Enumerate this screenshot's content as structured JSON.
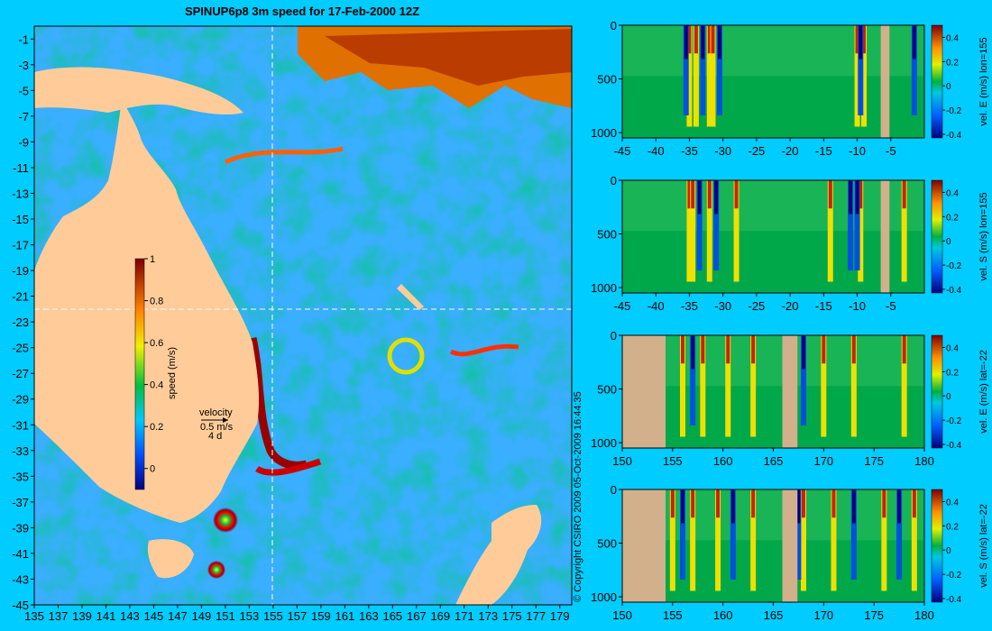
{
  "map": {
    "title": "SPINUP6p8 3m speed for 17-Feb-2000 12Z",
    "copyright": "© Copyright CSIRO 2009  05-Oct-2009 16:44:35",
    "velocity_legend": {
      "label": "velocity",
      "speed": "0.5 m/s",
      "duration": "4 d"
    },
    "crosshair": {
      "lon": 155,
      "lat": -22
    },
    "colorbar": {
      "label": "speed (m/s)",
      "ticks": [
        "1",
        "0.8",
        "0.6",
        "0.4",
        "0.2",
        "0"
      ],
      "range": [
        -0.1,
        1.0
      ]
    }
  },
  "chart_data": [
    {
      "type": "heatmap",
      "name": "map-speed",
      "xlim": [
        135,
        180
      ],
      "ylim": [
        -45,
        0
      ],
      "xticks": [
        "135",
        "137",
        "139",
        "141",
        "143",
        "145",
        "147",
        "149",
        "151",
        "153",
        "155",
        "157",
        "159",
        "161",
        "163",
        "165",
        "167",
        "169",
        "171",
        "173",
        "175",
        "177",
        "179"
      ],
      "yticks": [
        "-1",
        "-3",
        "-5",
        "-7",
        "-9",
        "-11",
        "-13",
        "-15",
        "-17",
        "-19",
        "-21",
        "-23",
        "-25",
        "-27",
        "-29",
        "-31",
        "-33",
        "-35",
        "-37",
        "-39",
        "-41",
        "-43",
        "-45"
      ]
    },
    {
      "type": "heatmap",
      "name": "section-1",
      "xlim": [
        -45,
        0
      ],
      "ylim": [
        1050,
        0
      ],
      "xticks": [
        "-45",
        "-40",
        "-35",
        "-30",
        "-25",
        "-20",
        "-15",
        "-10",
        "-5"
      ],
      "yticks": [
        "0",
        "500",
        "1000"
      ],
      "colorbar": {
        "label": "vel. E (m/s) lon=155",
        "ticks": [
          "0.4",
          "0.2",
          "0",
          "-0.2",
          "-0.4"
        ]
      },
      "high": [
        -35,
        -34,
        -32,
        -31.5,
        -10,
        -9
      ],
      "low": [
        -35.5,
        -33,
        -30.5,
        -9.5,
        -1.5
      ],
      "land": [
        [
          -6.5,
          -5.2
        ]
      ]
    },
    {
      "type": "heatmap",
      "name": "section-2",
      "xlim": [
        -45,
        0
      ],
      "ylim": [
        1050,
        0
      ],
      "xticks": [
        "-45",
        "-40",
        "-35",
        "-30",
        "-25",
        "-20",
        "-15",
        "-10",
        "-5"
      ],
      "yticks": [
        "0",
        "500",
        "1000"
      ],
      "colorbar": {
        "label": "vel. S (m/s) lon=155",
        "ticks": [
          "0.4",
          "0.2",
          "0",
          "-0.2",
          "-0.4"
        ]
      },
      "high": [
        -35,
        -34.5,
        -32,
        -28,
        -14,
        -9.5,
        -3
      ],
      "low": [
        -33.5,
        -31,
        -11,
        -10
      ],
      "land": [
        [
          -6.5,
          -5.2
        ]
      ]
    },
    {
      "type": "heatmap",
      "name": "section-3",
      "xlim": [
        150,
        180
      ],
      "ylim": [
        1050,
        0
      ],
      "xticks": [
        "150",
        "155",
        "160",
        "165",
        "170",
        "175",
        "180"
      ],
      "yticks": [
        "0",
        "500",
        "1000"
      ],
      "colorbar": {
        "label": "vel. E (m/s) lat=-22",
        "ticks": [
          "0.4",
          "0.2",
          "0",
          "-0.2",
          "-0.4"
        ]
      },
      "high": [
        156,
        158,
        160.5,
        163,
        170,
        173,
        178
      ],
      "low": [
        157,
        166.5,
        168
      ],
      "land": [
        [
          150,
          154.3
        ],
        [
          165.9,
          167.4
        ]
      ]
    },
    {
      "type": "heatmap",
      "name": "section-4",
      "xlim": [
        150,
        180
      ],
      "ylim": [
        1050,
        0
      ],
      "xticks": [
        "150",
        "155",
        "160",
        "165",
        "170",
        "175",
        "180"
      ],
      "yticks": [
        "0",
        "500",
        "1000"
      ],
      "colorbar": {
        "label": "vel. S (m/s) lat=-22",
        "ticks": [
          "0.4",
          "0.2",
          "0",
          "-0.2",
          "-0.4"
        ]
      },
      "high": [
        155,
        157,
        159.5,
        163,
        168,
        171,
        176,
        179
      ],
      "low": [
        156,
        161,
        167.5,
        173,
        177.5
      ],
      "land": [
        [
          150,
          154.3
        ],
        [
          165.9,
          167.4
        ]
      ]
    }
  ]
}
